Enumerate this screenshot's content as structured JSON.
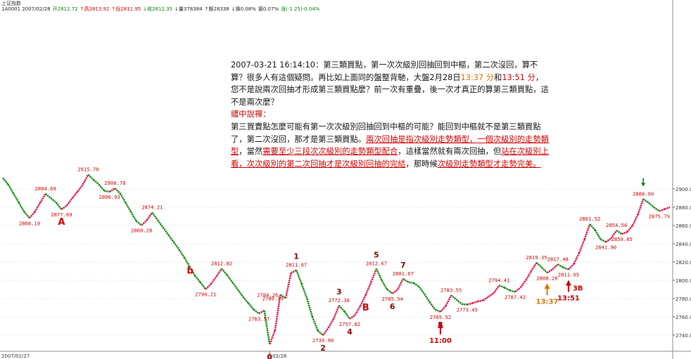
{
  "header": {
    "title": "上证指数",
    "quote": [
      {
        "text": "1A0001 2007/02/28",
        "tone": "nm"
      },
      {
        "text": "开2812.72",
        "tone": "dn"
      },
      {
        "text": "↑高2813.92",
        "tone": "up"
      },
      {
        "text": "↑低2811.95",
        "tone": "up"
      },
      {
        "text": "↓收2812.35",
        "tone": "dn"
      },
      {
        "text": "↓量378384",
        "tone": "nm"
      },
      {
        "text": "↑额28338",
        "tone": "nm"
      },
      {
        "text": "↓换0.08%",
        "tone": "nm"
      },
      {
        "text": "振0.07%",
        "tone": "nm"
      },
      {
        "text": "涨(-1.25)-0.04%",
        "tone": "dn"
      }
    ]
  },
  "note": {
    "intro": "2007-03-21 16:14:10：第三類買點，第一次次級別回抽回到中樞，第二次沒回，算不算？很多人有這個疑問。再比如上面同的盤整背馳，大盤2月28日",
    "t1": "13:37 分",
    "and": "和",
    "t2": "13:51 分",
    "intro_end": "，您不是說兩次回抽才形成第三類買點麼？前一次有重疊，後一次才真正的算第三類買點，這不是兩次麼？",
    "reply_title": "纏中說禪：",
    "body1": "第三買賣點怎麼可能有第一次次級別回抽回到中樞的可能？能回到中樞就不是第三類買點了，第二次沒回，那才是第三類買點。",
    "body2": "兩次回抽是指次級別走勢類型，",
    "body3": "一個次級別的走勢類型",
    "body4": "，當然",
    "body5": "需要至少三段次次級別的走勢類型配合",
    "body6": "，這樣當然就有兩次回抽，但",
    "body7": "站在次級別上看，次次級別的第二次回抽才是次級別回抽的完結",
    "body8": "，那時候",
    "body9": "次級別走勢類型才走勢完美。",
    "body10": ""
  },
  "chart_data": {
    "type": "line",
    "title": "",
    "xlabel": "",
    "ylabel": "",
    "ylim": [
      2730,
      2915
    ],
    "y_ticks": [
      2740,
      2760,
      2780,
      2800,
      2820,
      2840,
      2860,
      2880,
      2900
    ],
    "x_tick_labels": [
      "2007/02/27",
      "02/28"
    ],
    "grid": true,
    "series": [
      {
        "values": [
          2912,
          2905,
          2895,
          2885,
          2875,
          2868.19,
          2875,
          2885,
          2894.69,
          2890,
          2885,
          2877.69,
          2882,
          2890,
          2897,
          2905,
          2915.7,
          2910,
          2905,
          2898,
          2896.93,
          2900.78,
          2895,
          2885,
          2875,
          2865,
          2860.28,
          2866,
          2874.21,
          2866,
          2858,
          2850,
          2842,
          2834,
          2825,
          2815,
          2805,
          2798,
          2790.21,
          2796,
          2804,
          2812.82,
          2806,
          2798,
          2790,
          2782,
          2775,
          2768,
          2763.57,
          2767,
          2730,
          2745,
          2784.26,
          2780.39,
          2808,
          2811.07,
          2796,
          2780,
          2760,
          2745,
          2739.9,
          2748,
          2758,
          2772.36,
          2766,
          2757.82,
          2762,
          2772,
          2784,
          2798,
          2812.67,
          2800,
          2790,
          2785.54,
          2790,
          2801.67,
          2798,
          2797,
          2793,
          2785,
          2776,
          2768,
          2765.52,
          2772,
          2783.55,
          2779,
          2774,
          2773.45,
          2775,
          2777,
          2778,
          2782,
          2786,
          2794.41,
          2792,
          2789,
          2787.42,
          2792,
          2800,
          2810,
          2819.35,
          2814,
          2808.26,
          2812,
          2817.48,
          2814,
          2811.95,
          2818,
          2830,
          2845,
          2861.52,
          2855,
          2845,
          2841.9,
          2846,
          2854.56,
          2850.65,
          2853,
          2860,
          2872,
          2888.9,
          2885,
          2880,
          2875.79,
          2878,
          2880
        ]
      }
    ],
    "price_labels": [
      {
        "i": 5,
        "v": "2868.19",
        "pos": "below"
      },
      {
        "i": 8,
        "v": "2894.69",
        "pos": "above"
      },
      {
        "i": 11,
        "v": "2877.69",
        "pos": "below"
      },
      {
        "i": 16,
        "v": "2915.70",
        "pos": "above"
      },
      {
        "i": 20,
        "v": "2896.93",
        "pos": "below"
      },
      {
        "i": 21,
        "v": "2900.78",
        "pos": "above"
      },
      {
        "i": 26,
        "v": "2860.28",
        "pos": "below"
      },
      {
        "i": 28,
        "v": "2874.21",
        "pos": "above"
      },
      {
        "i": 38,
        "v": "2790.21",
        "pos": "below"
      },
      {
        "i": 41,
        "v": "2812.82",
        "pos": "above"
      },
      {
        "i": 48,
        "v": "2763.57",
        "pos": "below"
      },
      {
        "i": 52,
        "v": "2784.26",
        "pos": "left"
      },
      {
        "i": 53,
        "v": "2780.39",
        "pos": "left"
      },
      {
        "i": 55,
        "v": "2811.07",
        "pos": "above"
      },
      {
        "i": 60,
        "v": "2739.90",
        "pos": "below"
      },
      {
        "i": 63,
        "v": "2772.36",
        "pos": "above"
      },
      {
        "i": 65,
        "v": "2757.82",
        "pos": "below"
      },
      {
        "i": 70,
        "v": "2812.67",
        "pos": "above"
      },
      {
        "i": 73,
        "v": "2785.54",
        "pos": "below"
      },
      {
        "i": 75,
        "v": "2801.67",
        "pos": "above"
      },
      {
        "i": 82,
        "v": "2765.52",
        "pos": "below"
      },
      {
        "i": 84,
        "v": "2783.55",
        "pos": "above"
      },
      {
        "i": 87,
        "v": "2773.45",
        "pos": "below"
      },
      {
        "i": 93,
        "v": "2794.41",
        "pos": "above"
      },
      {
        "i": 96,
        "v": "2787.42",
        "pos": "below"
      },
      {
        "i": 100,
        "v": "2819.35",
        "pos": "above"
      },
      {
        "i": 102,
        "v": "2808.26",
        "pos": "below"
      },
      {
        "i": 104,
        "v": "2817.48",
        "pos": "above"
      },
      {
        "i": 106,
        "v": "2811.95",
        "pos": "below"
      },
      {
        "i": 110,
        "v": "2861.52",
        "pos": "above"
      },
      {
        "i": 113,
        "v": "2841.90",
        "pos": "below"
      },
      {
        "i": 115,
        "v": "2854.56",
        "pos": "above"
      },
      {
        "i": 116,
        "v": "2850.65",
        "pos": "below"
      },
      {
        "i": 120,
        "v": "2888.90",
        "pos": "above"
      },
      {
        "i": 123,
        "v": "2875.79",
        "pos": "below"
      }
    ],
    "annotations": [
      {
        "i": 11,
        "text": "A",
        "pos": "below",
        "color": "#cc0000"
      },
      {
        "i": 38,
        "text": "b",
        "pos": "left",
        "color": "#cc0000"
      },
      {
        "i": 50,
        "text": "0",
        "pos": "below",
        "color": "#8b0000"
      },
      {
        "i": 55,
        "text": "1",
        "pos": "above",
        "color": "#8b0000"
      },
      {
        "i": 60,
        "text": "2",
        "pos": "below",
        "color": "#8b0000"
      },
      {
        "i": 63,
        "text": "3",
        "pos": "above",
        "color": "#8b0000"
      },
      {
        "i": 65,
        "text": "4",
        "pos": "below",
        "color": "#8b0000"
      },
      {
        "i": 70,
        "text": "5",
        "pos": "above",
        "color": "#8b0000"
      },
      {
        "i": 73,
        "text": "6",
        "pos": "below",
        "color": "#8b0000"
      },
      {
        "i": 75,
        "text": "7",
        "pos": "above",
        "color": "#8b0000"
      },
      {
        "i": 82,
        "text": "8",
        "pos": "below",
        "color": "#8b0000"
      },
      {
        "i": 68,
        "text": "B",
        "pos": "below",
        "color": "#cc0000"
      }
    ],
    "arrows": [
      {
        "i": 82,
        "label": "11:00",
        "color": "#cc0000"
      },
      {
        "i": 102,
        "label": "13:37",
        "color": "#e07000"
      },
      {
        "i": 106,
        "label": "13:51",
        "color": "#cc0000",
        "tag": "3B"
      }
    ],
    "top_arrow": {
      "i": 120
    },
    "colors": {
      "up": "#e8003c",
      "down": "#008000",
      "grid": "#bdbdbd",
      "label": "#cc0000"
    }
  }
}
